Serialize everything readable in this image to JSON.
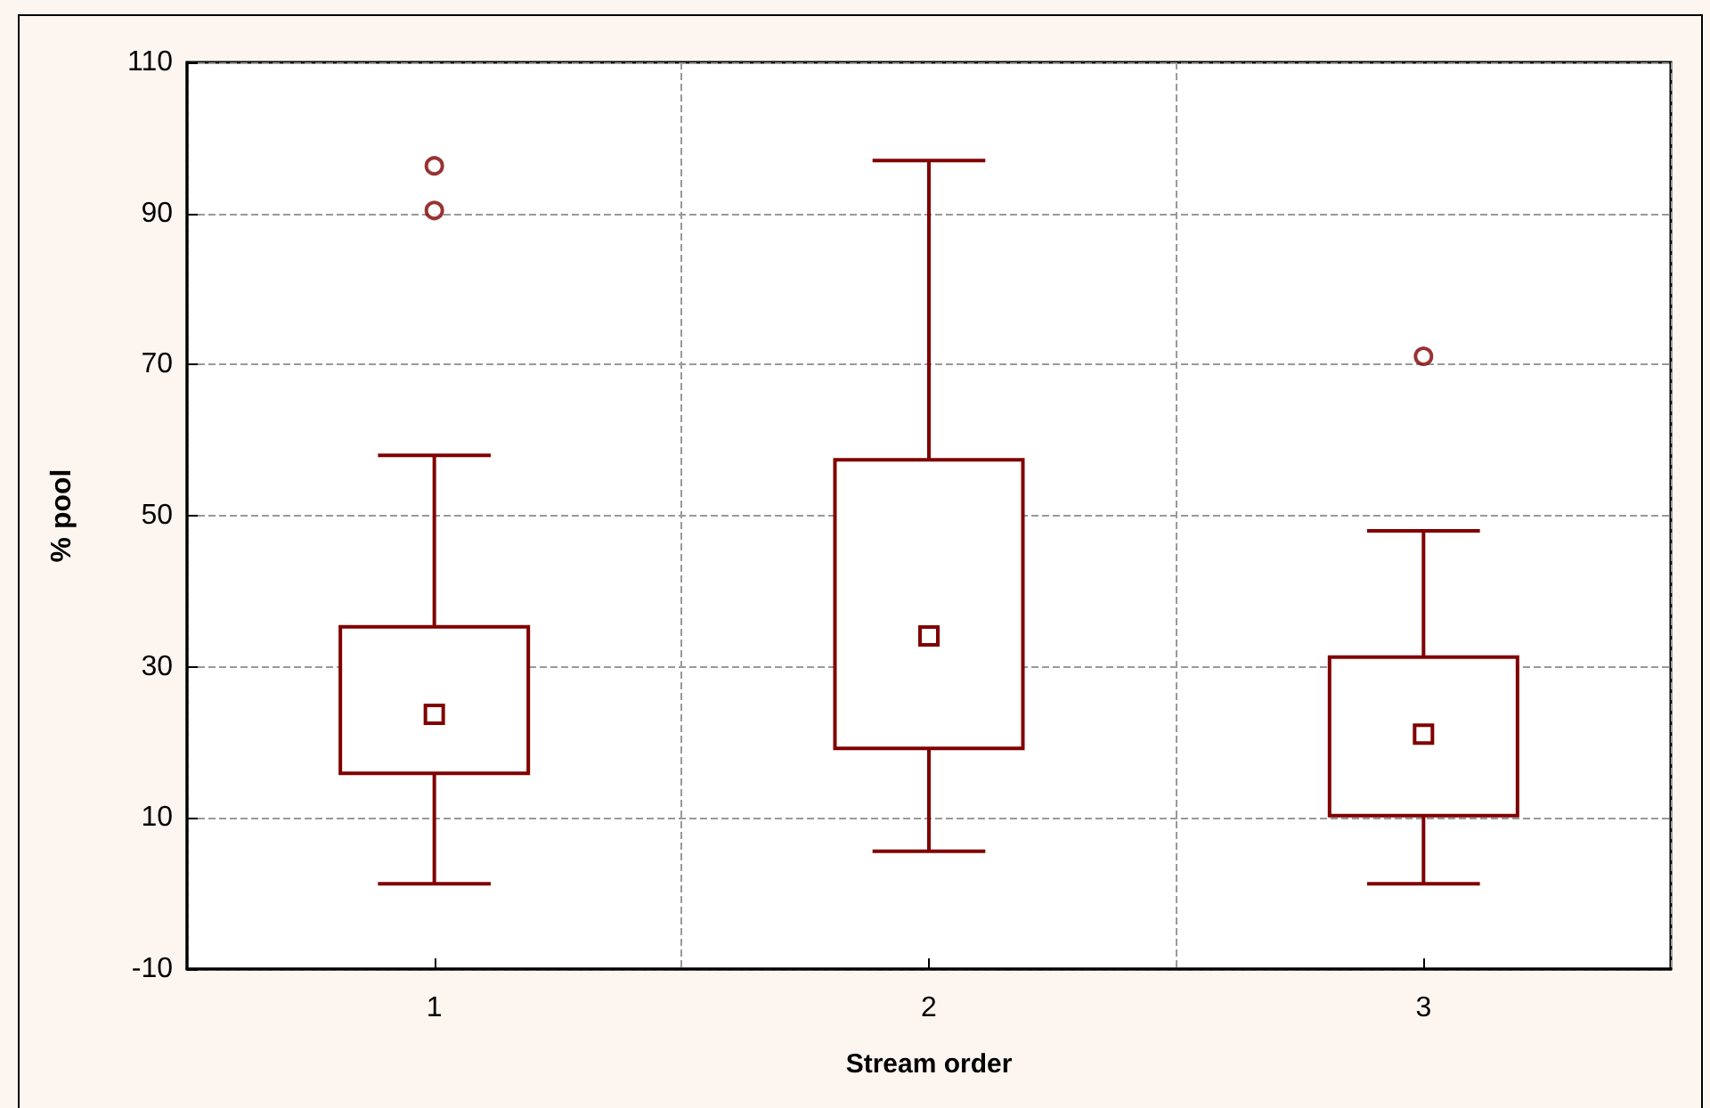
{
  "chart_data": {
    "type": "box",
    "xlabel": "Stream order",
    "ylabel": "% pool",
    "categories": [
      "1",
      "2",
      "3"
    ],
    "color": "#800000",
    "boxes": [
      {
        "low": 1.3,
        "q1": 15.9,
        "median": 23.7,
        "q3": 35.3,
        "high": 58,
        "outliers": [
          90.4,
          96.3
        ]
      },
      {
        "low": 5.6,
        "q1": 19.2,
        "median": 34.1,
        "q3": 57.4,
        "high": 97
      },
      {
        "low": 1.3,
        "q1": 10.3,
        "median": 21.1,
        "q3": 31.3,
        "high": 48,
        "outliers": [
          71.1
        ]
      }
    ],
    "ylim": [
      -10,
      110
    ],
    "yticks": [
      -10,
      10,
      30,
      50,
      70,
      90,
      110
    ],
    "grid": true,
    "marker": "circle"
  }
}
